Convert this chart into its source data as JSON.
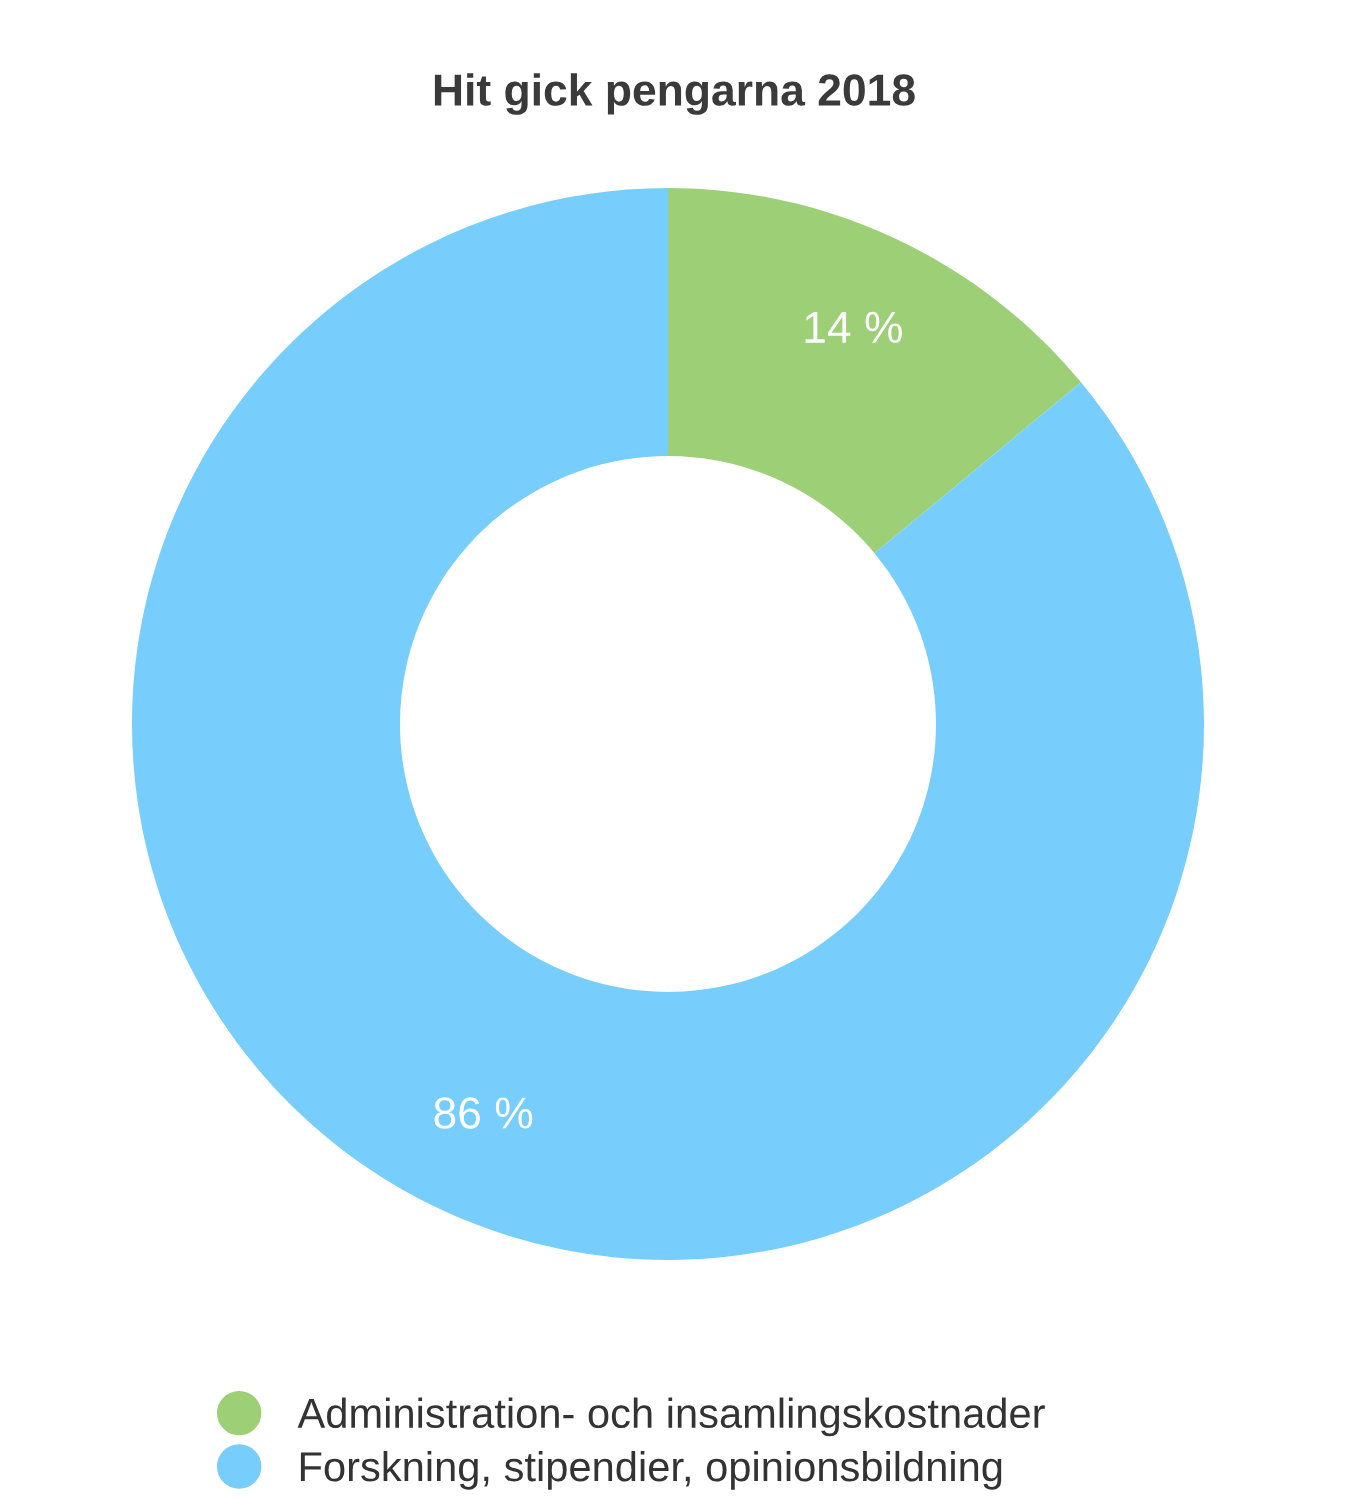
{
  "chart_data": {
    "type": "donut",
    "title": "Hit gick pengarna 2018",
    "categories": [
      "Administration- och insamlingskostnader",
      "Forskning, stipendier, opinionsbildning"
    ],
    "values": [
      14,
      86
    ],
    "colors": [
      "#9dcf77",
      "#77cdfb"
    ],
    "value_labels": [
      "14 %",
      "86 %"
    ],
    "legend": "bottom"
  }
}
